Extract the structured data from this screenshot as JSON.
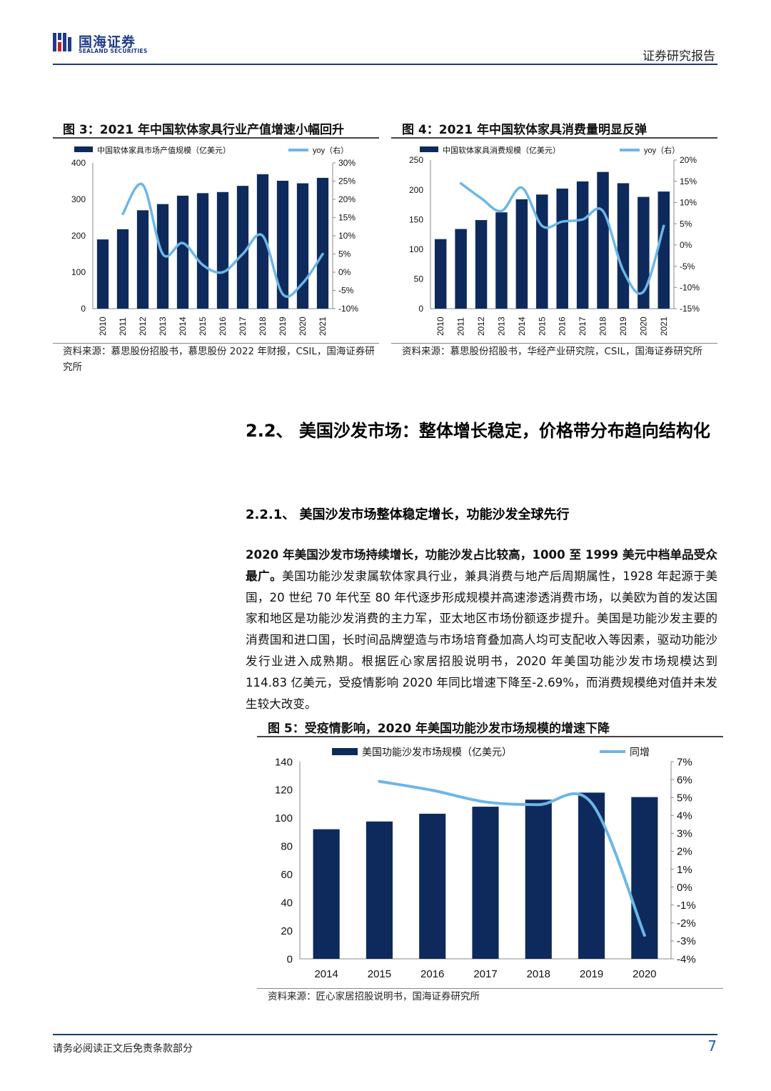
{
  "header": {
    "logo_cn": "国海证券",
    "logo_en": "SEALAND SECURITIES",
    "report_type": "证券研究报告"
  },
  "figures": [
    {
      "title": "图 3：2021 年中国软体家具行业产值增速小幅回升",
      "source": "资料来源：慕思股份招股书，慕思股份 2022 年财报，CSIL，国海证券研究所",
      "chart_data": {
        "type": "bar",
        "categories": [
          "2010",
          "2011",
          "2012",
          "2013",
          "2014",
          "2015",
          "2016",
          "2017",
          "2018",
          "2019",
          "2020",
          "2021"
        ],
        "series": [
          {
            "name": "中国软体家具市场产值规模（亿美元）",
            "type": "bar",
            "axis": "left",
            "values": [
              190,
              218,
              270,
              287,
              310,
              317,
              320,
              337,
              369,
              351,
              344,
              359
            ]
          },
          {
            "name": "yoy（右）",
            "type": "line",
            "axis": "right",
            "values": [
              null,
              16,
              24,
              5,
              8,
              2,
              0,
              5,
              10,
              -6,
              -3,
              5
            ]
          }
        ],
        "ylim_left": [
          0,
          400
        ],
        "yticks_left": [
          0,
          100,
          200,
          300,
          400
        ],
        "ylim_right": [
          -10,
          30
        ],
        "yticks_right": [
          "-10%",
          "-5%",
          "0%",
          "5%",
          "10%",
          "15%",
          "20%",
          "25%",
          "30%"
        ],
        "colors": {
          "bar": "#0e2a5c",
          "line": "#6db6e8"
        }
      }
    },
    {
      "title": "图 4：2021 年中国软体家具消费量明显反弹",
      "source": "资料来源：慕思股份招股书，华经产业研究院，CSIL，国海证券研究所",
      "chart_data": {
        "type": "bar",
        "categories": [
          "2010",
          "2011",
          "2012",
          "2013",
          "2014",
          "2015",
          "2016",
          "2017",
          "2018",
          "2019",
          "2020",
          "2021"
        ],
        "series": [
          {
            "name": "中国软体家具消费规模（亿美元）",
            "type": "bar",
            "axis": "left",
            "values": [
              117,
              134,
              149,
              162,
              184,
              192,
              202,
              214,
              230,
              211,
              188,
              197
            ]
          },
          {
            "name": "yoy（右）",
            "type": "line",
            "axis": "right",
            "values": [
              null,
              14.5,
              11,
              8,
              13.5,
              4.5,
              5.5,
              6,
              8,
              -6,
              -11,
              4.5
            ]
          }
        ],
        "ylim_left": [
          0,
          250
        ],
        "yticks_left": [
          0,
          50,
          100,
          150,
          200,
          250
        ],
        "ylim_right": [
          -15,
          20
        ],
        "yticks_right": [
          "-15%",
          "-10%",
          "-5%",
          "0%",
          "5%",
          "10%",
          "15%",
          "20%"
        ],
        "colors": {
          "bar": "#0e2a5c",
          "line": "#6db6e8"
        }
      }
    },
    {
      "title": "图 5：受疫情影响，2020 年美国功能沙发市场规模的增速下降",
      "source": "资料来源：匠心家居招股说明书，国海证券研究所",
      "chart_data": {
        "type": "bar",
        "categories": [
          "2014",
          "2015",
          "2016",
          "2017",
          "2018",
          "2019",
          "2020"
        ],
        "series": [
          {
            "name": "美国功能沙发市场规模（亿美元）",
            "type": "bar",
            "axis": "left",
            "values": [
              92,
              97.5,
              103,
              108,
              113,
              118,
              114.83
            ]
          },
          {
            "name": "同增",
            "type": "line",
            "axis": "right",
            "values": [
              null,
              5.9,
              5.4,
              4.75,
              4.6,
              4.7,
              -2.69
            ]
          }
        ],
        "ylim_left": [
          0,
          140
        ],
        "yticks_left": [
          0,
          20,
          40,
          60,
          80,
          100,
          120,
          140
        ],
        "ylim_right": [
          -4,
          7
        ],
        "yticks_right": [
          "-4%",
          "-3%",
          "-2%",
          "-1%",
          "0%",
          "1%",
          "2%",
          "3%",
          "4%",
          "5%",
          "6%",
          "7%"
        ],
        "colors": {
          "bar": "#0e2a5c",
          "line": "#6db6e8"
        }
      }
    }
  ],
  "section": {
    "heading_num": "2.2、",
    "heading_text": "美国沙发市场：整体增长稳定，价格带分布趋向结构化",
    "subheading_num": "2.2.1、",
    "subheading_text": "美国沙发市场整体稳定增长，功能沙发全球先行",
    "para_lead": "2020 年美国沙发市场持续增长，功能沙发占比较高，1000 至 1999 美元中档单品受众最广。",
    "para_body": "美国功能沙发隶属软体家具行业，兼具消费与地产后周期属性，1928 年起源于美国，20 世纪 70 年代至 80 年代逐步形成规模并高速渗透消费市场，以美欧为首的发达国家和地区是功能沙发消费的主力军，亚太地区市场份额逐步提升。美国是功能沙发主要的消费国和进口国，长时间品牌塑造与市场培育叠加高人均可支配收入等因素，驱动功能沙发行业进入成熟期。根据匠心家居招股说明书，2020 年美国功能沙发市场规模达到 114.83 亿美元，受疫情影响 2020 年同比增速下降至-2.69%，而消费规模绝对值并未发生较大改变。"
  },
  "footer": {
    "disclaimer": "请务必阅读正文后免责条款部分",
    "page": "7"
  }
}
